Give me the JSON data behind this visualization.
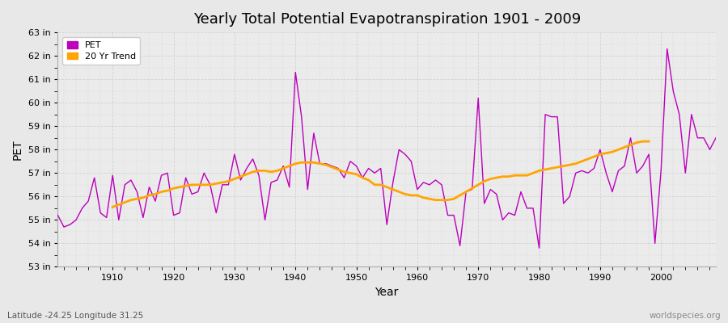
{
  "title": "Yearly Total Potential Evapotranspiration 1901 - 2009",
  "xlabel": "Year",
  "ylabel": "PET",
  "footer_left": "Latitude -24.25 Longitude 31.25",
  "footer_right": "worldspecies.org",
  "ylim": [
    53,
    63
  ],
  "ytick_labels": [
    "53 in",
    "54 in",
    "55 in",
    "56 in",
    "57 in",
    "58 in",
    "59 in",
    "60 in",
    "61 in",
    "62 in",
    "63 in"
  ],
  "ytick_values": [
    53,
    54,
    55,
    56,
    57,
    58,
    59,
    60,
    61,
    62,
    63
  ],
  "xlim": [
    1901,
    2009
  ],
  "pet_color": "#bb00bb",
  "trend_color": "#ffa500",
  "background_color": "#e8e8e8",
  "plot_bg_color": "#ebebeb",
  "grid_color": "#d0d0d0",
  "pet_label": "PET",
  "trend_label": "20 Yr Trend",
  "years": [
    1901,
    1902,
    1903,
    1904,
    1905,
    1906,
    1907,
    1908,
    1909,
    1910,
    1911,
    1912,
    1913,
    1914,
    1915,
    1916,
    1917,
    1918,
    1919,
    1920,
    1921,
    1922,
    1923,
    1924,
    1925,
    1926,
    1927,
    1928,
    1929,
    1930,
    1931,
    1932,
    1933,
    1934,
    1935,
    1936,
    1937,
    1938,
    1939,
    1940,
    1941,
    1942,
    1943,
    1944,
    1945,
    1946,
    1947,
    1948,
    1949,
    1950,
    1951,
    1952,
    1953,
    1954,
    1955,
    1956,
    1957,
    1958,
    1959,
    1960,
    1961,
    1962,
    1963,
    1964,
    1965,
    1966,
    1967,
    1968,
    1969,
    1970,
    1971,
    1972,
    1973,
    1974,
    1975,
    1976,
    1977,
    1978,
    1979,
    1980,
    1981,
    1982,
    1983,
    1984,
    1985,
    1986,
    1987,
    1988,
    1989,
    1990,
    1991,
    1992,
    1993,
    1994,
    1995,
    1996,
    1997,
    1998,
    1999,
    2000,
    2001,
    2002,
    2003,
    2004,
    2005,
    2006,
    2007,
    2008,
    2009
  ],
  "pet_values": [
    55.2,
    54.7,
    54.8,
    55.0,
    55.5,
    55.8,
    56.8,
    55.3,
    55.1,
    56.9,
    55.0,
    56.5,
    56.7,
    56.2,
    55.1,
    56.4,
    55.8,
    56.9,
    57.0,
    55.2,
    55.3,
    56.8,
    56.1,
    56.2,
    57.0,
    56.5,
    55.3,
    56.5,
    56.5,
    57.8,
    56.7,
    57.2,
    57.6,
    56.9,
    55.0,
    56.6,
    56.7,
    57.3,
    56.4,
    61.3,
    59.4,
    56.3,
    58.7,
    57.4,
    57.4,
    57.3,
    57.2,
    56.8,
    57.5,
    57.3,
    56.8,
    57.2,
    57.0,
    57.2,
    54.8,
    56.6,
    58.0,
    57.8,
    57.5,
    56.3,
    56.6,
    56.5,
    56.7,
    56.5,
    55.2,
    55.2,
    53.9,
    56.2,
    56.3,
    60.2,
    55.7,
    56.3,
    56.1,
    55.0,
    55.3,
    55.2,
    56.2,
    55.5,
    55.5,
    53.8,
    59.5,
    59.4,
    59.4,
    55.7,
    56.0,
    57.0,
    57.1,
    57.0,
    57.2,
    58.0,
    57.0,
    56.2,
    57.1,
    57.3,
    58.5,
    57.0,
    57.3,
    57.8,
    54.0,
    57.1,
    62.3,
    60.5,
    59.5,
    57.0,
    59.5,
    58.5,
    58.5,
    58.0,
    58.5
  ],
  "trend_years": [
    1910,
    1911,
    1912,
    1913,
    1914,
    1915,
    1916,
    1917,
    1918,
    1919,
    1920,
    1921,
    1922,
    1923,
    1924,
    1925,
    1926,
    1927,
    1928,
    1929,
    1930,
    1931,
    1932,
    1933,
    1934,
    1935,
    1936,
    1937,
    1938,
    1939,
    1940,
    1941,
    1942,
    1943,
    1944,
    1945,
    1946,
    1947,
    1948,
    1949,
    1950,
    1951,
    1952,
    1953,
    1954,
    1955,
    1956,
    1957,
    1958,
    1959,
    1960,
    1961,
    1962,
    1963,
    1964,
    1965,
    1966,
    1967,
    1968,
    1969,
    1970,
    1971,
    1972,
    1973,
    1974,
    1975,
    1976,
    1977,
    1978,
    1979,
    1980,
    1981,
    1982,
    1983,
    1984,
    1985,
    1986,
    1987,
    1988,
    1989,
    1990,
    1991,
    1992,
    1993,
    1994,
    1995,
    1996,
    1997,
    1998
  ],
  "trend_values": [
    55.55,
    55.65,
    55.75,
    55.85,
    55.9,
    55.95,
    56.05,
    56.1,
    56.2,
    56.25,
    56.35,
    56.4,
    56.45,
    56.5,
    56.5,
    56.5,
    56.5,
    56.55,
    56.6,
    56.65,
    56.75,
    56.85,
    56.95,
    57.05,
    57.1,
    57.1,
    57.05,
    57.1,
    57.2,
    57.3,
    57.4,
    57.45,
    57.45,
    57.45,
    57.4,
    57.35,
    57.25,
    57.15,
    57.05,
    57.0,
    56.95,
    56.8,
    56.7,
    56.5,
    56.5,
    56.4,
    56.3,
    56.2,
    56.1,
    56.05,
    56.05,
    55.95,
    55.9,
    55.85,
    55.85,
    55.85,
    55.9,
    56.05,
    56.2,
    56.35,
    56.5,
    56.65,
    56.75,
    56.8,
    56.85,
    56.85,
    56.9,
    56.9,
    56.9,
    57.0,
    57.1,
    57.15,
    57.2,
    57.25,
    57.3,
    57.35,
    57.4,
    57.5,
    57.6,
    57.7,
    57.8,
    57.85,
    57.9,
    58.0,
    58.1,
    58.2,
    58.3,
    58.35,
    58.35
  ]
}
